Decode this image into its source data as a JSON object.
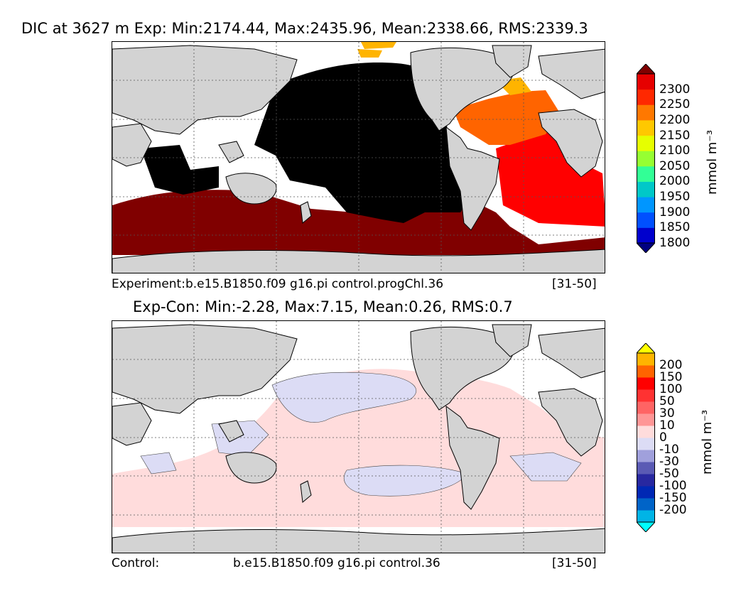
{
  "top_panel": {
    "title": "DIC at 3627 m Exp: Min:2174.44, Max:2435.96, Mean:2338.66, RMS:2339.3",
    "caption_left": "Experiment:b.e15.B1850.f09 g16.pi control.progChl.36",
    "caption_right": "[31-50]",
    "colorbar": {
      "unit": "mmol m⁻³",
      "ticks": [
        "2300",
        "2250",
        "2200",
        "2150",
        "2100",
        "2050",
        "2000",
        "1950",
        "1900",
        "1850",
        "1800"
      ],
      "colors": [
        "#000080",
        "#0000cd",
        "#0050ff",
        "#0096ff",
        "#00c8c8",
        "#32ff96",
        "#96ff32",
        "#e6ff00",
        "#ffc800",
        "#ff7800",
        "#ff2800",
        "#e60000",
        "#800000"
      ]
    }
  },
  "bottom_panel": {
    "title": "Exp-Con: Min:-2.28, Max:7.15, Mean:0.26, RMS:0.7",
    "caption_left": "Control:",
    "caption_mid": "b.e15.B1850.f09 g16.pi control.36",
    "caption_right": "[31-50]",
    "colorbar": {
      "unit": "mmol m⁻³",
      "ticks": [
        "200",
        "150",
        "100",
        "50",
        "30",
        "10",
        "0",
        "-10",
        "-30",
        "-50",
        "-100",
        "-150",
        "-200"
      ],
      "colors": [
        "#00ffff",
        "#00b4e6",
        "#0064c8",
        "#0028b4",
        "#2828a0",
        "#5a5ab4",
        "#a0a0dc",
        "#dcdcf5",
        "#ffdcdc",
        "#ff9696",
        "#ff6464",
        "#ff3232",
        "#ff0000",
        "#ff6400",
        "#ffb400",
        "#ffff00"
      ]
    }
  },
  "map": {
    "land_color": "#d3d3d3",
    "ocean_nodata_color": "#ffffff",
    "top_field_colors": {
      "deep_pacific": "#000000",
      "southern_ocean": "#800000",
      "atlantic_south": "#ff0000",
      "atlantic_north": "#ff6400",
      "arctic": "#ffb400"
    },
    "bottom_field_colors": {
      "positive": "#ffdcdc",
      "negative": "#dcdcf5"
    }
  }
}
